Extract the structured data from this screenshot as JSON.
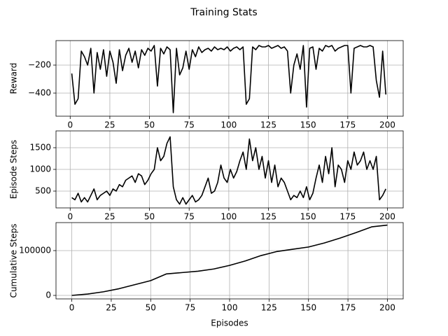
{
  "title": "Training Stats",
  "chart_data": [
    {
      "type": "line",
      "ylabel": "Reward",
      "grid": true,
      "x": [
        1,
        3,
        5,
        7,
        9,
        11,
        13,
        15,
        17,
        19,
        21,
        23,
        25,
        27,
        29,
        31,
        33,
        35,
        37,
        39,
        41,
        43,
        45,
        47,
        49,
        51,
        53,
        55,
        57,
        59,
        61,
        63,
        65,
        67,
        69,
        71,
        73,
        75,
        77,
        79,
        81,
        83,
        85,
        87,
        89,
        91,
        93,
        95,
        97,
        99,
        101,
        103,
        105,
        107,
        109,
        111,
        113,
        115,
        117,
        119,
        121,
        123,
        125,
        127,
        129,
        131,
        133,
        135,
        137,
        139,
        141,
        143,
        145,
        147,
        149,
        151,
        153,
        155,
        157,
        159,
        161,
        163,
        165,
        167,
        169,
        171,
        173,
        175,
        177,
        179,
        181,
        183,
        185,
        187,
        189,
        191,
        193,
        195,
        197,
        199
      ],
      "series": [
        {
          "color": "#000000",
          "values": [
            -260,
            -480,
            -440,
            -100,
            -140,
            -200,
            -80,
            -400,
            -110,
            -230,
            -90,
            -280,
            -100,
            -180,
            -330,
            -90,
            -240,
            -130,
            -80,
            -180,
            -100,
            -220,
            -90,
            -130,
            -80,
            -100,
            -60,
            -350,
            -80,
            -120,
            -70,
            -90,
            -540,
            -80,
            -270,
            -220,
            -100,
            -230,
            -90,
            -140,
            -70,
            -110,
            -90,
            -80,
            -100,
            -70,
            -90,
            -80,
            -90,
            -70,
            -100,
            -80,
            -70,
            -90,
            -70,
            -480,
            -440,
            -70,
            -90,
            -60,
            -70,
            -70,
            -60,
            -80,
            -70,
            -60,
            -80,
            -70,
            -100,
            -400,
            -200,
            -120,
            -230,
            -60,
            -500,
            -80,
            -70,
            -230,
            -80,
            -100,
            -60,
            -70,
            -60,
            -100,
            -80,
            -70,
            -60,
            -60,
            -400,
            -80,
            -70,
            -60,
            -70,
            -70,
            -60,
            -70,
            -310,
            -430,
            -100,
            -410
          ]
        }
      ],
      "xlim": [
        -8.95,
        209.95
      ],
      "xticks": [
        0,
        25,
        50,
        75,
        100,
        125,
        150,
        175,
        200
      ],
      "ylim": [
        -565,
        -25
      ],
      "yticks": [
        {
          "value": -400,
          "label": "−400"
        },
        {
          "value": -200,
          "label": "−200"
        }
      ]
    },
    {
      "type": "line",
      "ylabel": "Episode Steps",
      "grid": true,
      "x": [
        1,
        3,
        5,
        7,
        9,
        11,
        13,
        15,
        17,
        19,
        21,
        23,
        25,
        27,
        29,
        31,
        33,
        35,
        37,
        39,
        41,
        43,
        45,
        47,
        49,
        51,
        53,
        55,
        57,
        59,
        61,
        63,
        65,
        67,
        69,
        71,
        73,
        75,
        77,
        79,
        81,
        83,
        85,
        87,
        89,
        91,
        93,
        95,
        97,
        99,
        101,
        103,
        105,
        107,
        109,
        111,
        113,
        115,
        117,
        119,
        121,
        123,
        125,
        127,
        129,
        131,
        133,
        135,
        137,
        139,
        141,
        143,
        145,
        147,
        149,
        151,
        153,
        155,
        157,
        159,
        161,
        163,
        165,
        167,
        169,
        171,
        173,
        175,
        177,
        179,
        181,
        183,
        185,
        187,
        189,
        191,
        193,
        195,
        197,
        199
      ],
      "series": [
        {
          "color": "#000000",
          "values": [
            350,
            300,
            450,
            250,
            350,
            250,
            400,
            550,
            300,
            400,
            450,
            500,
            400,
            550,
            500,
            650,
            600,
            750,
            800,
            850,
            700,
            900,
            850,
            650,
            750,
            900,
            1000,
            1500,
            1200,
            1300,
            1600,
            1750,
            600,
            300,
            200,
            350,
            200,
            300,
            400,
            250,
            300,
            400,
            600,
            800,
            450,
            500,
            700,
            1100,
            800,
            700,
            1000,
            800,
            950,
            1200,
            1400,
            1000,
            1700,
            1200,
            1500,
            1000,
            1300,
            800,
            1200,
            700,
            1100,
            600,
            800,
            700,
            500,
            300,
            400,
            350,
            500,
            350,
            600,
            300,
            450,
            800,
            1100,
            700,
            1300,
            900,
            1500,
            600,
            1100,
            1000,
            700,
            1200,
            1000,
            1400,
            1100,
            1200,
            1400,
            1000,
            1200,
            1000,
            1300,
            300,
            400,
            550
          ]
        }
      ],
      "xlim": [
        -8.95,
        209.95
      ],
      "xticks": [
        0,
        25,
        50,
        75,
        100,
        125,
        150,
        175,
        200
      ],
      "ylim": [
        113,
        1887
      ],
      "yticks": [
        500,
        1000,
        1500
      ]
    },
    {
      "type": "line",
      "ylabel": "Cumulative Steps",
      "xlabel": "Episodes",
      "grid": true,
      "x": [
        0,
        10,
        20,
        30,
        40,
        50,
        60,
        70,
        80,
        90,
        100,
        110,
        120,
        130,
        140,
        150,
        160,
        170,
        180,
        190,
        200
      ],
      "series": [
        {
          "color": "#000000",
          "values": [
            0,
            3000,
            8000,
            15000,
            24000,
            33000,
            48000,
            51000,
            54000,
            59000,
            67000,
            77000,
            89000,
            98000,
            103000,
            108000,
            117000,
            128000,
            140000,
            153000,
            157000
          ]
        }
      ],
      "xlim": [
        -10,
        210
      ],
      "xticks": [
        0,
        25,
        50,
        75,
        100,
        125,
        150,
        175,
        200
      ],
      "ylim": [
        -7800,
        162500
      ],
      "yticks": [
        0,
        100000
      ]
    }
  ]
}
